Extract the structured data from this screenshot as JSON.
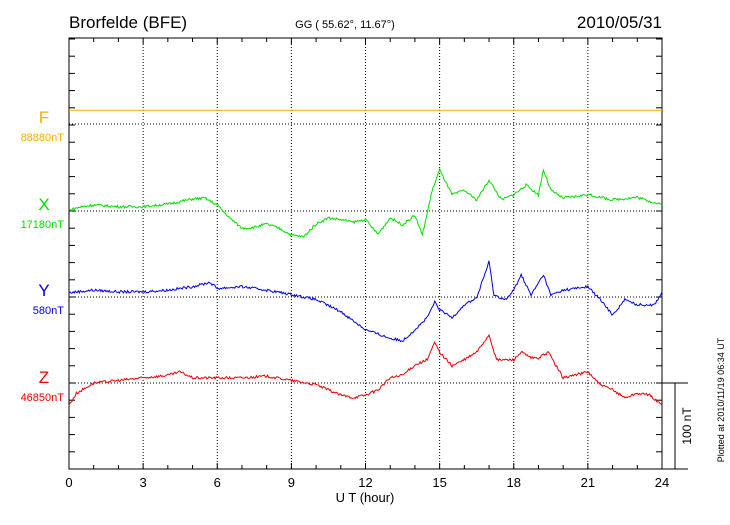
{
  "chart_data": {
    "type": "line",
    "title": "Brorfelde (BFE)",
    "subtitle": "GG ( 55.62°,  11.67°)",
    "date": "2010/05/31",
    "xlabel": "U T (hour)",
    "xlim": [
      0,
      24
    ],
    "xticks": [
      "0",
      "3",
      "6",
      "9",
      "12",
      "15",
      "18",
      "21",
      "24"
    ],
    "scale_label": "100 nT",
    "scale_nT": 100,
    "plotted_note": "Plotted at 2010/11/19 06:34 UT",
    "grid": true,
    "series": [
      {
        "name": "F",
        "baseline_label": "88880nT",
        "color": "#f5b000",
        "offset_nT": 8,
        "points": [
          [
            0,
            8
          ],
          [
            24,
            8
          ]
        ]
      },
      {
        "name": "X",
        "baseline_label": "17180nT",
        "color": "#00e000",
        "offset_nT": 0,
        "points": [
          [
            0,
            1
          ],
          [
            0.5,
            5
          ],
          [
            1,
            7
          ],
          [
            2,
            5
          ],
          [
            3,
            5
          ],
          [
            4,
            8
          ],
          [
            5,
            14
          ],
          [
            5.5,
            15
          ],
          [
            6,
            7
          ],
          [
            6.5,
            -8
          ],
          [
            7,
            -20
          ],
          [
            7.5,
            -19
          ],
          [
            8,
            -15
          ],
          [
            8.5,
            -20
          ],
          [
            9,
            -28
          ],
          [
            9.5,
            -30
          ],
          [
            10,
            -15
          ],
          [
            10.5,
            -8
          ],
          [
            11,
            -10
          ],
          [
            11.5,
            -13
          ],
          [
            12,
            -10
          ],
          [
            12.5,
            -27
          ],
          [
            13,
            -8
          ],
          [
            13.5,
            -16
          ],
          [
            14,
            -5
          ],
          [
            14.3,
            -28
          ],
          [
            14.7,
            24
          ],
          [
            15,
            48
          ],
          [
            15.5,
            19
          ],
          [
            16,
            24
          ],
          [
            16.5,
            13
          ],
          [
            17,
            36
          ],
          [
            17.5,
            13
          ],
          [
            18,
            19
          ],
          [
            18.5,
            30
          ],
          [
            19,
            19
          ],
          [
            19.2,
            48
          ],
          [
            19.5,
            24
          ],
          [
            20,
            15
          ],
          [
            21,
            19
          ],
          [
            22,
            13
          ],
          [
            23,
            16
          ],
          [
            24,
            7
          ]
        ]
      },
      {
        "name": "Y",
        "baseline_label": "580nT",
        "color": "#0000ee",
        "offset_nT": 0,
        "points": [
          [
            0,
            5
          ],
          [
            1,
            8
          ],
          [
            2,
            6
          ],
          [
            3,
            6
          ],
          [
            4,
            8
          ],
          [
            5,
            12
          ],
          [
            5.7,
            17
          ],
          [
            6,
            10
          ],
          [
            7,
            12
          ],
          [
            8,
            8
          ],
          [
            9,
            3
          ],
          [
            10,
            -3
          ],
          [
            11,
            -17
          ],
          [
            12,
            -38
          ],
          [
            13,
            -48
          ],
          [
            13.5,
            -51
          ],
          [
            14,
            -38
          ],
          [
            14.5,
            -24
          ],
          [
            14.8,
            -6
          ],
          [
            15,
            -15
          ],
          [
            15.5,
            -24
          ],
          [
            16,
            -9
          ],
          [
            16.5,
            -1
          ],
          [
            17,
            41
          ],
          [
            17.2,
            2
          ],
          [
            17.7,
            -3
          ],
          [
            18,
            8
          ],
          [
            18.3,
            26
          ],
          [
            18.7,
            2
          ],
          [
            19.2,
            26
          ],
          [
            19.5,
            2
          ],
          [
            20,
            8
          ],
          [
            21,
            12
          ],
          [
            21.5,
            -3
          ],
          [
            22,
            -21
          ],
          [
            22.5,
            -3
          ],
          [
            23,
            -9
          ],
          [
            23.7,
            -9
          ],
          [
            24,
            6
          ]
        ]
      },
      {
        "name": "Z",
        "baseline_label": "46850nT",
        "color": "#ee0000",
        "offset_nT": 0,
        "points": [
          [
            0,
            -26
          ],
          [
            0.3,
            -12
          ],
          [
            1,
            0
          ],
          [
            2,
            3
          ],
          [
            3,
            6
          ],
          [
            4,
            9
          ],
          [
            4.5,
            13
          ],
          [
            5,
            6
          ],
          [
            6,
            6
          ],
          [
            7,
            6
          ],
          [
            8,
            8
          ],
          [
            9,
            3
          ],
          [
            10,
            -2
          ],
          [
            11,
            -14
          ],
          [
            11.5,
            -17
          ],
          [
            12,
            -14
          ],
          [
            12.5,
            -8
          ],
          [
            13,
            6
          ],
          [
            13.5,
            9
          ],
          [
            14,
            21
          ],
          [
            14.5,
            27
          ],
          [
            14.8,
            47
          ],
          [
            15,
            36
          ],
          [
            15.5,
            20
          ],
          [
            16,
            27
          ],
          [
            16.5,
            36
          ],
          [
            17,
            56
          ],
          [
            17.3,
            27
          ],
          [
            18,
            27
          ],
          [
            18.3,
            36
          ],
          [
            18.7,
            29
          ],
          [
            19,
            29
          ],
          [
            19.4,
            36
          ],
          [
            19.7,
            21
          ],
          [
            20,
            6
          ],
          [
            21,
            13
          ],
          [
            21.5,
            -2
          ],
          [
            22,
            -8
          ],
          [
            22.5,
            -17
          ],
          [
            23,
            -12
          ],
          [
            23.5,
            -14
          ],
          [
            24,
            -26
          ]
        ]
      }
    ]
  }
}
